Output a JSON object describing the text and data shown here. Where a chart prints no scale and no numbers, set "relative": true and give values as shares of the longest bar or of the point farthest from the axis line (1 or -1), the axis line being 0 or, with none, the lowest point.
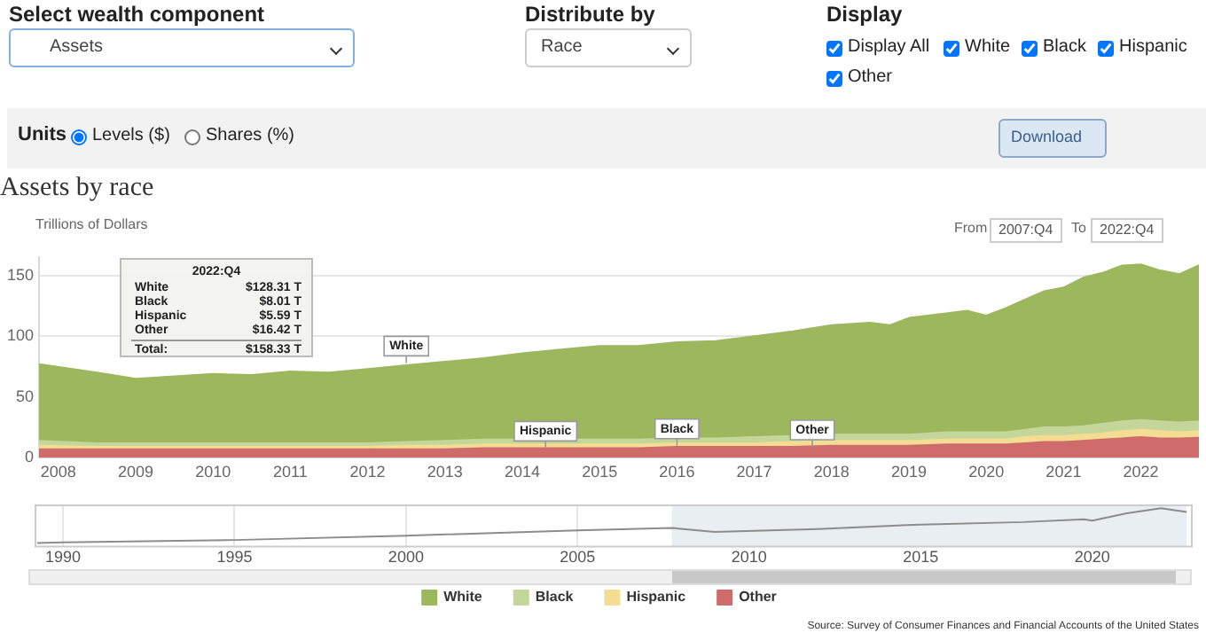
{
  "chart_data": [
    {
      "type": "other",
      "annotations": [
        "Select wealth component",
        "Assets",
        "Distribute by",
        "Race",
        "Display",
        "Display All",
        "White",
        "Black",
        "Hispanic",
        "Other",
        "Units",
        "Levels ($)",
        "Shares (%)",
        "Download",
        "From",
        "2007:Q4",
        "To",
        "2022:Q4"
      ]
    },
    {
      "type": "area",
      "title": "Assets by race",
      "ylabel": "Trillions of Dollars",
      "stacked": true,
      "grid": "y",
      "legend": "bottom",
      "x": [
        2007.75,
        2008.5,
        2009,
        2009.5,
        2010,
        2010.5,
        2011,
        2011.5,
        2012,
        2012.5,
        2013,
        2013.5,
        2014,
        2014.5,
        2015,
        2015.5,
        2016,
        2016.5,
        2017,
        2017.5,
        2018,
        2018.5,
        2018.75,
        2019,
        2019.5,
        2019.75,
        2020,
        2020.25,
        2020.5,
        2020.75,
        2021,
        2021.25,
        2021.5,
        2021.75,
        2022,
        2022.25,
        2022.5,
        2022.75
      ],
      "xlim": [
        2007.75,
        2022.75
      ],
      "xticks": [
        2008,
        2009,
        2010,
        2011,
        2012,
        2013,
        2014,
        2015,
        2016,
        2017,
        2018,
        2019,
        2020,
        2021,
        2022
      ],
      "ylim": [
        0,
        165
      ],
      "yticks": [
        0,
        50,
        100,
        150
      ],
      "series": [
        {
          "name": "Other",
          "color": "#d06b6b",
          "values": [
            7,
            7,
            7,
            7,
            7,
            7,
            7,
            7,
            7,
            7,
            7,
            8,
            8,
            8,
            8,
            8,
            9,
            9,
            9,
            9,
            10,
            10,
            10,
            10,
            11,
            11,
            11,
            11,
            12,
            13,
            13,
            14,
            15,
            16,
            17,
            16,
            16,
            16.42
          ]
        },
        {
          "name": "Hispanic",
          "color": "#f5dc93",
          "values": [
            3,
            2,
            2,
            2,
            2,
            2,
            2,
            2,
            2,
            3,
            3,
            3,
            3,
            3,
            3,
            3,
            3,
            3,
            3,
            4,
            4,
            4,
            4,
            4,
            4,
            4,
            4,
            4,
            5,
            5,
            5,
            5,
            5,
            6,
            6,
            6,
            5,
            5.59
          ]
        },
        {
          "name": "Black",
          "color": "#c3d79b",
          "values": [
            4,
            3,
            3,
            3,
            3,
            3,
            3,
            3,
            3,
            3,
            4,
            4,
            4,
            4,
            4,
            4,
            4,
            4,
            5,
            5,
            5,
            5,
            5,
            5,
            6,
            6,
            6,
            6,
            6,
            7,
            7,
            7,
            8,
            8,
            8,
            8,
            8,
            8.01
          ]
        },
        {
          "name": "White",
          "color": "#9cb75c",
          "values": [
            63,
            58,
            53,
            55,
            57,
            56,
            59,
            58,
            61,
            63,
            65,
            67,
            71,
            74,
            77,
            77,
            79,
            80,
            83,
            86,
            90,
            92,
            90,
            96,
            98,
            100,
            96,
            102,
            107,
            112,
            115,
            122,
            124,
            128,
            128,
            124,
            122,
            128.31
          ]
        }
      ],
      "annotations": [
        {
          "text": "White",
          "x": 2012.5,
          "y": 78
        },
        {
          "text": "Hispanic",
          "x": 2014.3,
          "y": 8
        },
        {
          "text": "Black",
          "x": 2016,
          "y": 10
        },
        {
          "text": "Other",
          "x": 2017.75,
          "y": 9
        },
        "2022:Q4",
        "$128.31 T",
        "$8.01 T",
        "$5.59 T",
        "$16.42 T",
        "Total:",
        "$158.33 T",
        "Source: Survey of Consumer Finances and Financial Accounts of the United States"
      ]
    },
    {
      "type": "line",
      "relative": true,
      "color": "#8c8c8c",
      "grid": "x",
      "tick_labels": "x",
      "x": [
        1989.25,
        1990,
        1995,
        2000,
        2005,
        2007.75,
        2009,
        2012,
        2015,
        2018,
        2019.75,
        2020,
        2021,
        2022,
        2022.75
      ],
      "values": [
        0,
        0.02,
        0.085,
        0.21,
        0.36,
        0.43,
        0.32,
        0.4,
        0.53,
        0.6,
        0.68,
        0.64,
        0.85,
        1,
        0.89
      ],
      "xlim": [
        1989.2,
        2022.9
      ],
      "xticks": [
        1990,
        1995,
        2000,
        2005,
        2010,
        2015,
        2020
      ],
      "bands": [
        {
          "axis": "x",
          "from": 2007.75,
          "to": 2022.75,
          "color": "#e9eef3"
        }
      ]
    }
  ]
}
